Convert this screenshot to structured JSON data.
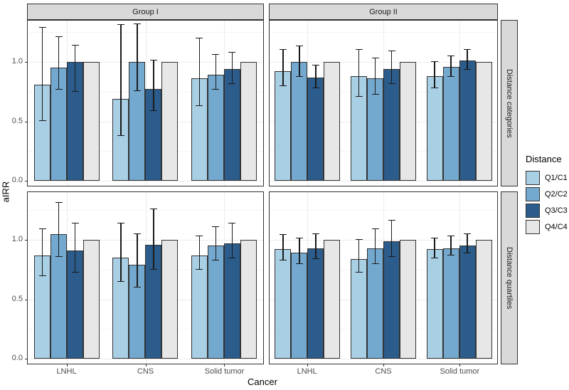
{
  "colors": {
    "bar_stroke": "#333333",
    "whisker": "#1a1a1a",
    "strip_bg": "#D9D9D9",
    "panel_border": "#333333",
    "grid_major": "#EBEBEB",
    "grid_minor": "#F5F5F5",
    "tick_text": "#4D4D4D"
  },
  "chart_data": {
    "type": "bar",
    "title": "",
    "xlabel": "Cancer",
    "ylabel": "aIRR",
    "legend_title": "Distance",
    "legend_position": "right",
    "grid": true,
    "error_bars": true,
    "ylim": [
      0,
      1.4
    ],
    "y_tick_values": [
      0,
      0.5,
      1
    ],
    "y_tick_labels": [
      "0.0",
      "0.5",
      "1.0"
    ],
    "y_minor_tick_values": [
      0.25,
      0.75,
      1.25
    ],
    "facet_cols": [
      "Group I",
      "Group II"
    ],
    "facet_rows": [
      "Distance categories",
      "Distance quartiles"
    ],
    "categories": [
      "LNHL",
      "CNS",
      "Solid tumor"
    ],
    "series": [
      {
        "label": "Q1/C1",
        "color": "#A9CFE5"
      },
      {
        "label": "Q2/C2",
        "color": "#74A9CF"
      },
      {
        "label": "Q3/C3",
        "color": "#2B5C8C"
      },
      {
        "label": "Q4/C4",
        "color": "#E7E7E7"
      }
    ],
    "panels": [
      {
        "facet_col": "Group I",
        "facet_row": "Distance categories",
        "groups": [
          {
            "category": "LNHL",
            "bars": [
              {
                "series": "Q1/C1",
                "value": 0.81,
                "ci_low": 0.5,
                "ci_high": 1.29
              },
              {
                "series": "Q2/C2",
                "value": 0.95,
                "ci_low": 0.76,
                "ci_high": 1.21
              },
              {
                "series": "Q3/C3",
                "value": 1.0,
                "ci_low": 0.74,
                "ci_high": 1.14
              },
              {
                "series": "Q4/C4",
                "value": 1.0,
                "ci_low": null,
                "ci_high": null
              }
            ]
          },
          {
            "category": "CNS",
            "bars": [
              {
                "series": "Q1/C1",
                "value": 0.69,
                "ci_low": 0.37,
                "ci_high": 1.31
              },
              {
                "series": "Q2/C2",
                "value": 1.0,
                "ci_low": 0.75,
                "ci_high": 1.32
              },
              {
                "series": "Q3/C3",
                "value": 0.77,
                "ci_low": 0.58,
                "ci_high": 1.01
              },
              {
                "series": "Q4/C4",
                "value": 1.0,
                "ci_low": null,
                "ci_high": null
              }
            ]
          },
          {
            "category": "Solid tumor",
            "bars": [
              {
                "series": "Q1/C1",
                "value": 0.86,
                "ci_low": 0.62,
                "ci_high": 1.2
              },
              {
                "series": "Q2/C2",
                "value": 0.89,
                "ci_low": 0.76,
                "ci_high": 1.06
              },
              {
                "series": "Q3/C3",
                "value": 0.94,
                "ci_low": 0.81,
                "ci_high": 1.08
              },
              {
                "series": "Q4/C4",
                "value": 1.0,
                "ci_low": null,
                "ci_high": null
              }
            ]
          }
        ]
      },
      {
        "facet_col": "Group II",
        "facet_row": "Distance categories",
        "groups": [
          {
            "category": "LNHL",
            "bars": [
              {
                "series": "Q1/C1",
                "value": 0.92,
                "ci_low": 0.79,
                "ci_high": 1.1
              },
              {
                "series": "Q2/C2",
                "value": 1.0,
                "ci_low": 0.87,
                "ci_high": 1.13
              },
              {
                "series": "Q3/C3",
                "value": 0.87,
                "ci_low": 0.77,
                "ci_high": 0.97
              },
              {
                "series": "Q4/C4",
                "value": 1.0,
                "ci_low": null,
                "ci_high": null
              }
            ]
          },
          {
            "category": "CNS",
            "bars": [
              {
                "series": "Q1/C1",
                "value": 0.88,
                "ci_low": 0.7,
                "ci_high": 1.1
              },
              {
                "series": "Q2/C2",
                "value": 0.86,
                "ci_low": 0.72,
                "ci_high": 1.03
              },
              {
                "series": "Q3/C3",
                "value": 0.94,
                "ci_low": 0.81,
                "ci_high": 1.09
              },
              {
                "series": "Q4/C4",
                "value": 1.0,
                "ci_low": null,
                "ci_high": null
              }
            ]
          },
          {
            "category": "Solid tumor",
            "bars": [
              {
                "series": "Q1/C1",
                "value": 0.88,
                "ci_low": 0.77,
                "ci_high": 1.0
              },
              {
                "series": "Q2/C2",
                "value": 0.96,
                "ci_low": 0.87,
                "ci_high": 1.05
              },
              {
                "series": "Q3/C3",
                "value": 1.01,
                "ci_low": 0.93,
                "ci_high": 1.1
              },
              {
                "series": "Q4/C4",
                "value": 1.0,
                "ci_low": null,
                "ci_high": null
              }
            ]
          }
        ]
      },
      {
        "facet_col": "Group I",
        "facet_row": "Distance quartiles",
        "groups": [
          {
            "category": "LNHL",
            "bars": [
              {
                "series": "Q1/C1",
                "value": 0.87,
                "ci_low": 0.69,
                "ci_high": 1.09
              },
              {
                "series": "Q2/C2",
                "value": 1.05,
                "ci_low": 0.85,
                "ci_high": 1.31
              },
              {
                "series": "Q3/C3",
                "value": 0.91,
                "ci_low": 0.72,
                "ci_high": 1.14
              },
              {
                "series": "Q4/C4",
                "value": 1.0,
                "ci_low": null,
                "ci_high": null
              }
            ]
          },
          {
            "category": "CNS",
            "bars": [
              {
                "series": "Q1/C1",
                "value": 0.85,
                "ci_low": 0.64,
                "ci_high": 1.14
              },
              {
                "series": "Q2/C2",
                "value": 0.79,
                "ci_low": 0.59,
                "ci_high": 1.05
              },
              {
                "series": "Q3/C3",
                "value": 0.96,
                "ci_low": 0.74,
                "ci_high": 1.26
              },
              {
                "series": "Q4/C4",
                "value": 1.0,
                "ci_low": null,
                "ci_high": null
              }
            ]
          },
          {
            "category": "Solid tumor",
            "bars": [
              {
                "series": "Q1/C1",
                "value": 0.87,
                "ci_low": 0.74,
                "ci_high": 1.03
              },
              {
                "series": "Q2/C2",
                "value": 0.95,
                "ci_low": 0.82,
                "ci_high": 1.11
              },
              {
                "series": "Q3/C3",
                "value": 0.97,
                "ci_low": 0.84,
                "ci_high": 1.14
              },
              {
                "series": "Q4/C4",
                "value": 1.0,
                "ci_low": null,
                "ci_high": null
              }
            ]
          }
        ]
      },
      {
        "facet_col": "Group II",
        "facet_row": "Distance quartiles",
        "groups": [
          {
            "category": "LNHL",
            "bars": [
              {
                "series": "Q1/C1",
                "value": 0.92,
                "ci_low": 0.82,
                "ci_high": 1.04
              },
              {
                "series": "Q2/C2",
                "value": 0.89,
                "ci_low": 0.79,
                "ci_high": 1.01
              },
              {
                "series": "Q3/C3",
                "value": 0.93,
                "ci_low": 0.83,
                "ci_high": 1.05
              },
              {
                "series": "Q4/C4",
                "value": 1.0,
                "ci_low": null,
                "ci_high": null
              }
            ]
          },
          {
            "category": "CNS",
            "bars": [
              {
                "series": "Q1/C1",
                "value": 0.84,
                "ci_low": 0.72,
                "ci_high": 1.0
              },
              {
                "series": "Q2/C2",
                "value": 0.93,
                "ci_low": 0.79,
                "ci_high": 1.09
              },
              {
                "series": "Q3/C3",
                "value": 0.99,
                "ci_low": 0.85,
                "ci_high": 1.16
              },
              {
                "series": "Q4/C4",
                "value": 1.0,
                "ci_low": null,
                "ci_high": null
              }
            ]
          },
          {
            "category": "Solid tumor",
            "bars": [
              {
                "series": "Q1/C1",
                "value": 0.92,
                "ci_low": 0.84,
                "ci_high": 1.01
              },
              {
                "series": "Q2/C2",
                "value": 0.93,
                "ci_low": 0.86,
                "ci_high": 1.03
              },
              {
                "series": "Q3/C3",
                "value": 0.95,
                "ci_low": 0.88,
                "ci_high": 1.05
              },
              {
                "series": "Q4/C4",
                "value": 1.0,
                "ci_low": null,
                "ci_high": null
              }
            ]
          }
        ]
      }
    ]
  }
}
